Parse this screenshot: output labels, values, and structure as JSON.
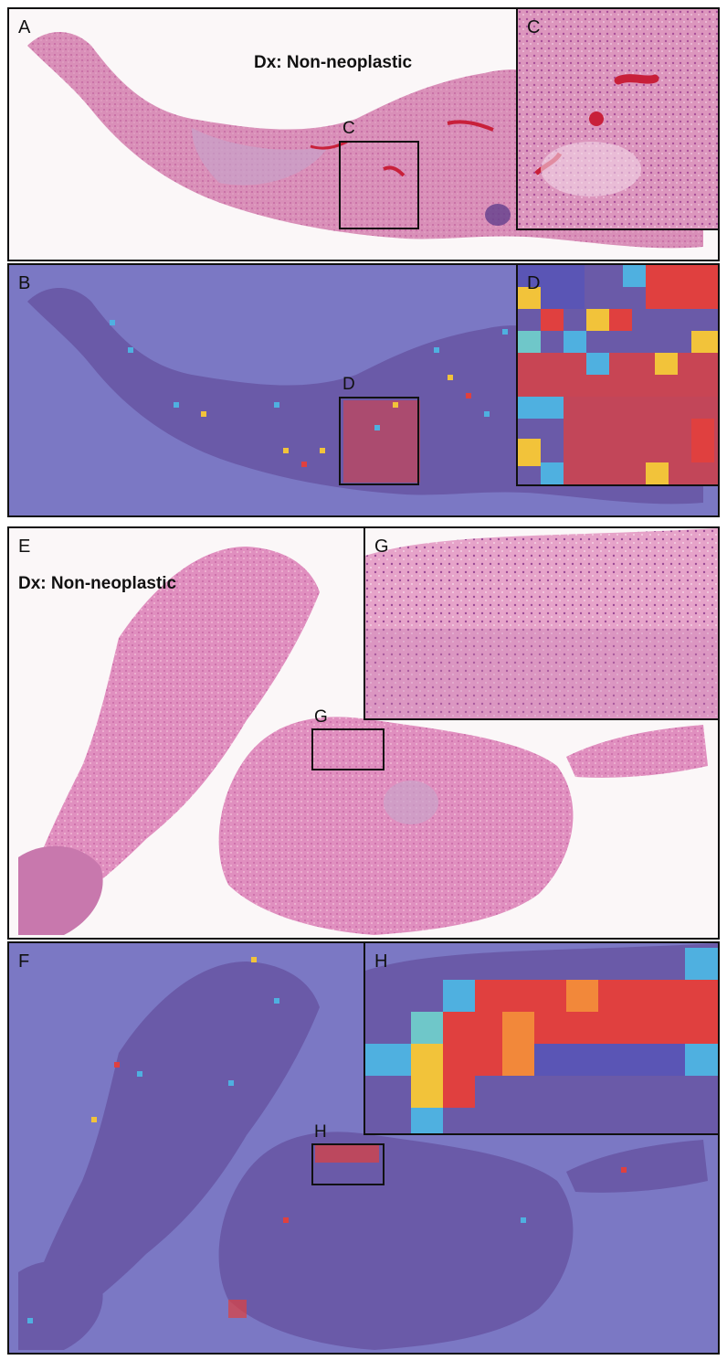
{
  "figure": {
    "panel_a": {
      "label": "A",
      "diagnosis": "Dx: Non-neoplastic",
      "box_label": "C"
    },
    "panel_c": {
      "label": "C"
    },
    "panel_b": {
      "label": "B",
      "box_label": "D"
    },
    "panel_d": {
      "label": "D"
    },
    "panel_e": {
      "label": "E",
      "diagnosis": "Dx: Non-neoplastic",
      "box_label": "G"
    },
    "panel_g": {
      "label": "G"
    },
    "panel_f": {
      "label": "F",
      "box_label": "H"
    },
    "panel_h": {
      "label": "H"
    }
  },
  "colors": {
    "he_tissue": "#d98fb8",
    "he_dark": "#b0508f",
    "heatmap_background": "#7b78c4",
    "heatmap_tissue": "#6a5aa8",
    "heat_low": "#4fb0e0",
    "heat_mid": "#f2c33a",
    "heat_high": "#e0403f"
  }
}
